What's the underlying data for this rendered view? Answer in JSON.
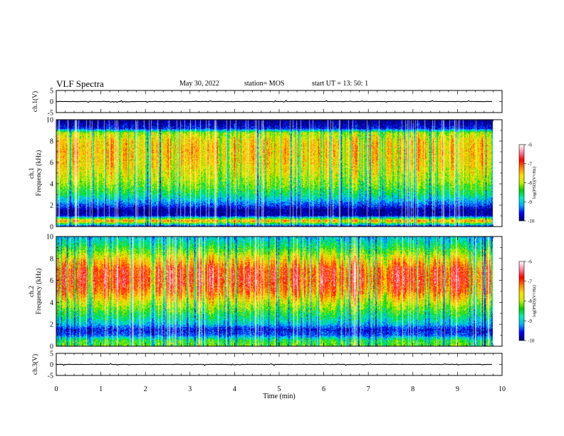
{
  "header": {
    "title": "VLF Spectra",
    "date": "May 30, 2022",
    "station": "station= MOS",
    "start": "start  UT =   13: 50: 1"
  },
  "chart_data": [
    {
      "type": "line",
      "panel": "ch1-waveform",
      "ylabel": "ch.1(V)",
      "yticks": [
        "5",
        "0",
        "-5"
      ],
      "ylim": [
        -5,
        5
      ],
      "trace_level": 0,
      "xlim": [
        0,
        10
      ]
    },
    {
      "type": "heatmap",
      "panel": "ch1-spectrogram",
      "ylabel": "ch.1\nFrequency (kHz)",
      "yticks": [
        "0",
        "2",
        "4",
        "6",
        "8",
        "10"
      ],
      "ylim": [
        0,
        10
      ],
      "xlim": [
        0,
        10
      ],
      "data_end_min": 9.8,
      "colorbar": {
        "label": "log(PSD)(V²/Hz)",
        "ticks": [
          "-6",
          "-7",
          "-8",
          "-9",
          "-10"
        ],
        "range": [
          -10,
          -6
        ]
      },
      "profile_khz": [
        0,
        0.5,
        1,
        1.5,
        2,
        3,
        4,
        5,
        6,
        7,
        8,
        8.8,
        9.2,
        10
      ],
      "profile_level": [
        -9.6,
        -7.2,
        -9.8,
        -9.9,
        -9.4,
        -8.6,
        -8.1,
        -7.8,
        -7.6,
        -7.5,
        -7.6,
        -8.0,
        -9.6,
        -10
      ]
    },
    {
      "type": "heatmap",
      "panel": "ch2-spectrogram",
      "ylabel": "ch.2\nFrequency (kHz)",
      "yticks": [
        "0",
        "2",
        "4",
        "6",
        "8",
        "10"
      ],
      "ylim": [
        0,
        10
      ],
      "xlim": [
        0,
        10
      ],
      "data_end_min": 9.8,
      "colorbar": {
        "label": "log(PSD)(V²/Hz)",
        "ticks": [
          "-6",
          "-7",
          "-8",
          "-9",
          "-10"
        ],
        "range": [
          -10,
          -6
        ]
      },
      "profile_khz": [
        0,
        0.5,
        1,
        1.5,
        2,
        3,
        4,
        5,
        6,
        7,
        8,
        9,
        10
      ],
      "profile_level": [
        -8.2,
        -8.4,
        -9.4,
        -9.6,
        -9.0,
        -8.4,
        -7.8,
        -7.1,
        -6.8,
        -6.9,
        -7.6,
        -8.4,
        -9.0
      ]
    },
    {
      "type": "line",
      "panel": "ch3-waveform",
      "ylabel": "ch.3(V)",
      "yticks": [
        "5",
        "0",
        "-5"
      ],
      "ylim": [
        -5,
        5
      ],
      "trace_level": 0,
      "xlim": [
        0,
        10
      ]
    }
  ],
  "xaxis": {
    "label": "Time  (min)",
    "ticks": [
      "0",
      "1",
      "2",
      "3",
      "4",
      "5",
      "6",
      "7",
      "8",
      "9",
      "10"
    ]
  },
  "colors": {
    "scale": [
      "#000070",
      "#0000ff",
      "#00b0ff",
      "#00f0c0",
      "#00d000",
      "#c8f000",
      "#ffe000",
      "#ff8000",
      "#ff0000",
      "#ff80a0",
      "#ffffff"
    ]
  }
}
